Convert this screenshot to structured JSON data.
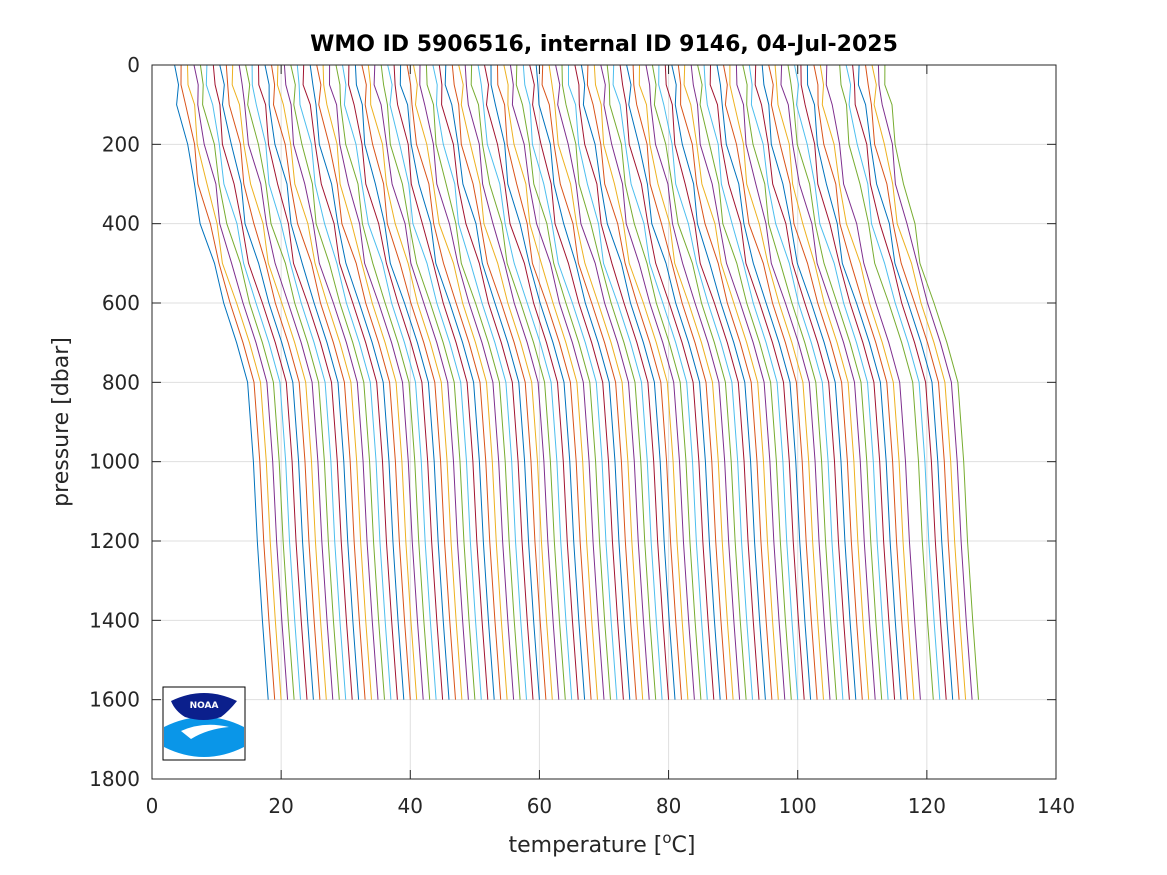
{
  "chart_data": {
    "type": "line",
    "title": "WMO ID 5906516, internal ID 9146, 04-Jul-2025",
    "xlabel": "temperature [",
    "xlabel_unit_sup": "o",
    "xlabel_unit_tail": "C]",
    "ylabel": "pressure [dbar]",
    "xlim": [
      0,
      140
    ],
    "ylim": [
      0,
      1800
    ],
    "y_reversed": true,
    "grid": true,
    "xticks": [
      0,
      20,
      40,
      60,
      80,
      100,
      120,
      140
    ],
    "xtick_labels": [
      "0",
      "20",
      "40",
      "60",
      "80",
      "100",
      "120",
      "140"
    ],
    "yticks": [
      0,
      200,
      400,
      600,
      800,
      1000,
      1200,
      1400,
      1600,
      1800
    ],
    "ytick_labels": [
      "0",
      "200",
      "400",
      "600",
      "800",
      "1000",
      "1200",
      "1400",
      "1600",
      "1800"
    ],
    "series_description": "offset temperature profiles (each profile shifted ~1 °C to the right of the previous one)",
    "series_count": 110,
    "profile_pressure": [
      0,
      50,
      100,
      200,
      300,
      400,
      500,
      600,
      700,
      800,
      1000,
      1200,
      1400,
      1600
    ],
    "profile_bottom_temps": [
      3.5,
      4.5,
      5.5,
      6.5,
      7.5,
      8.5,
      9.5,
      10.5,
      11.5,
      12.5,
      13.5,
      14.5,
      15.5,
      16.5,
      17.5,
      18.5,
      19.5,
      20.5,
      21.5,
      22.5,
      23.5,
      24.5,
      25.5,
      26.5,
      27.5,
      28.5,
      29.5,
      30.5,
      31.5,
      32.5,
      33.5,
      34.5,
      35.5,
      36.5,
      37.5,
      38.5,
      39.5,
      40.5,
      41.5,
      42.5,
      43.5,
      44.5,
      45.5,
      46.5,
      47.5,
      48.5,
      49.5,
      50.5,
      51.5,
      52.5,
      53.5,
      54.5,
      55.5,
      56.5,
      57.5,
      58.5,
      59.5,
      60.5,
      61.5,
      62.5,
      63.5,
      64.5,
      65.5,
      66.5,
      67.5,
      68.5,
      69.5,
      70.5,
      71.5,
      72.5,
      73.5,
      74.5,
      75.5,
      76.5,
      77.5,
      78.5,
      79.5,
      80.5,
      81.5,
      82.5,
      83.5,
      84.5,
      85.5,
      86.5,
      87.5,
      88.5,
      89.5,
      90.5,
      91.5,
      92.5,
      93.5,
      94.5,
      95.5,
      96.5,
      97.5,
      98.5,
      99.5,
      100.5,
      101.5,
      102.5,
      103.5,
      104.5,
      106.5,
      107.5,
      108.5,
      109.5,
      110.5,
      111.5,
      112.5,
      113.5
    ],
    "profile_offsets_from_bottom": [
      0,
      0.3,
      0.7,
      1.8,
      3.0,
      4.3,
      5.8,
      7.6,
      9.6,
      11.3,
      12.2,
      12.8,
      13.6,
      14.5
    ],
    "colors": [
      "#0072BD",
      "#D95319",
      "#EDB120",
      "#7E2F8E",
      "#77AC30",
      "#4DBEEE",
      "#A2142F"
    ],
    "logo_text": "NOAA"
  }
}
